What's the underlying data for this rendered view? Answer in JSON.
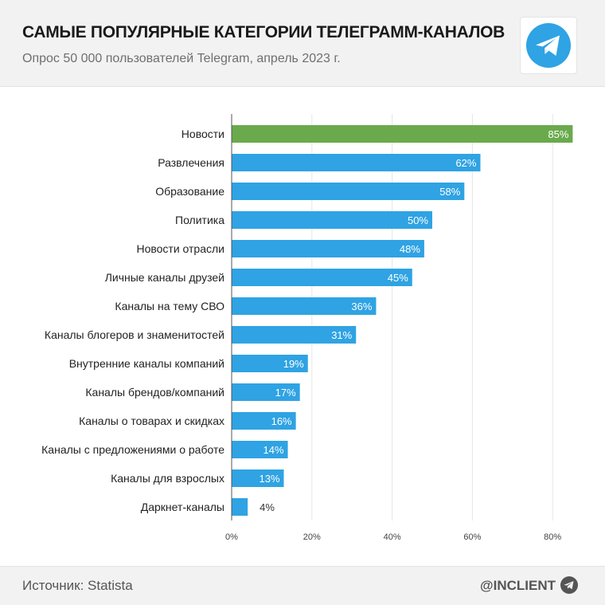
{
  "header": {
    "title": "САМЫЕ ПОПУЛЯРНЫЕ КАТЕГОРИИ ТЕЛЕГРАММ-КАНАЛОВ",
    "subtitle": "Опрос 50 000 пользователей Telegram, апрель 2023 г.",
    "logo_icon": "telegram-logo-icon"
  },
  "footer": {
    "source": "Источник: Statista",
    "handle": "@INCLIENT",
    "handle_icon": "telegram-plane-icon"
  },
  "colors": {
    "bar_default": "#2fa3e3",
    "bar_highlight": "#6aaa4d",
    "grid": "#e6e6e6",
    "axis_line": "#555555",
    "label_text": "#222222",
    "value_text_inside": "#ffffff",
    "value_text_outside": "#333333"
  },
  "chart_data": {
    "type": "bar",
    "orientation": "horizontal",
    "categories": [
      "Новости",
      "Развлечения",
      "Образование",
      "Политика",
      "Новости отрасли",
      "Личные каналы друзей",
      "Каналы на тему СВО",
      "Каналы блогеров и знаменитостей",
      "Внутренние каналы компаний",
      "Каналы брендов/компаний",
      "Каналы о товарах и скидках",
      "Каналы с предложениями о работе",
      "Каналы для взрослых",
      "Даркнет-каналы"
    ],
    "values": [
      85,
      62,
      58,
      50,
      48,
      45,
      36,
      31,
      19,
      17,
      16,
      14,
      13,
      4
    ],
    "value_labels": [
      "85%",
      "62%",
      "58%",
      "50%",
      "48%",
      "45%",
      "36%",
      "31%",
      "19%",
      "17%",
      "16%",
      "14%",
      "13%",
      "4%"
    ],
    "highlight_index": 0,
    "xlim": [
      0,
      85
    ],
    "xticks": [
      0,
      20,
      40,
      60,
      80
    ],
    "xtick_labels": [
      "0%",
      "20%",
      "40%",
      "60%",
      "80%"
    ],
    "grid": true,
    "legend": false
  }
}
